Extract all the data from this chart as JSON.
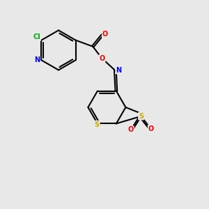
{
  "bg": "#e8e8e8",
  "colors": {
    "C": "#000000",
    "N": "#0000ee",
    "O": "#ee0000",
    "S": "#ccaa00",
    "Cl": "#00aa00",
    "bond": "#000000"
  },
  "lw": 1.5,
  "fs": 7.0,
  "figsize": [
    3.0,
    3.0
  ],
  "dpi": 100,
  "xlim": [
    0,
    10
  ],
  "ylim": [
    0,
    10
  ]
}
